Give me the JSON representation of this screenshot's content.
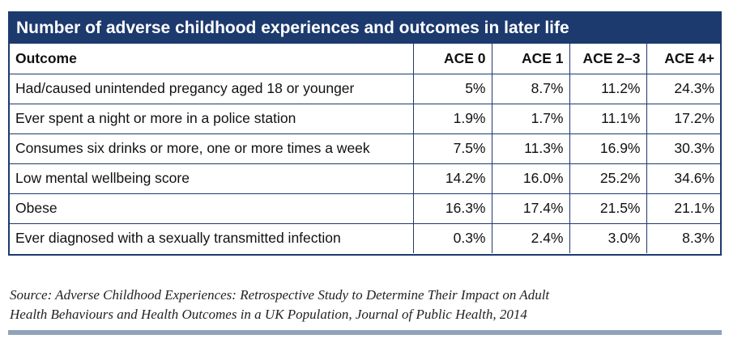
{
  "title": "Number of adverse childhood experiences and outcomes in later life",
  "table": {
    "headers": [
      "Outcome",
      "ACE 0",
      "ACE 1",
      "ACE 2–3",
      "ACE 4+"
    ],
    "rows": [
      [
        "Had/caused unintended pregancy aged 18 or younger",
        "5%",
        "8.7%",
        "11.2%",
        "24.3%"
      ],
      [
        "Ever spent a night or more in a police station",
        "1.9%",
        "1.7%",
        "11.1%",
        "17.2%"
      ],
      [
        "Consumes six drinks or more, one or more times a week",
        "7.5%",
        "11.3%",
        "16.9%",
        "30.3%"
      ],
      [
        "Low mental wellbeing score",
        "14.2%",
        "16.0%",
        "25.2%",
        "34.6%"
      ],
      [
        "Obese",
        "16.3%",
        "17.4%",
        "21.5%",
        "21.1%"
      ],
      [
        "Ever diagnosed with a sexually transmitted infection",
        "0.3%",
        "2.4%",
        "3.0%",
        "8.3%"
      ]
    ]
  },
  "source": {
    "line1": "Source: Adverse Childhood Experiences: Retrospective Study to Determine Their Impact on Adult",
    "line2": "Health Behaviours and Health Outcomes in a UK Population, Journal of Public Health, 2014"
  },
  "colors": {
    "header_bg": "#1c3a6e",
    "border": "#1c3a6e",
    "footer_rule": "#8fa3b8"
  }
}
